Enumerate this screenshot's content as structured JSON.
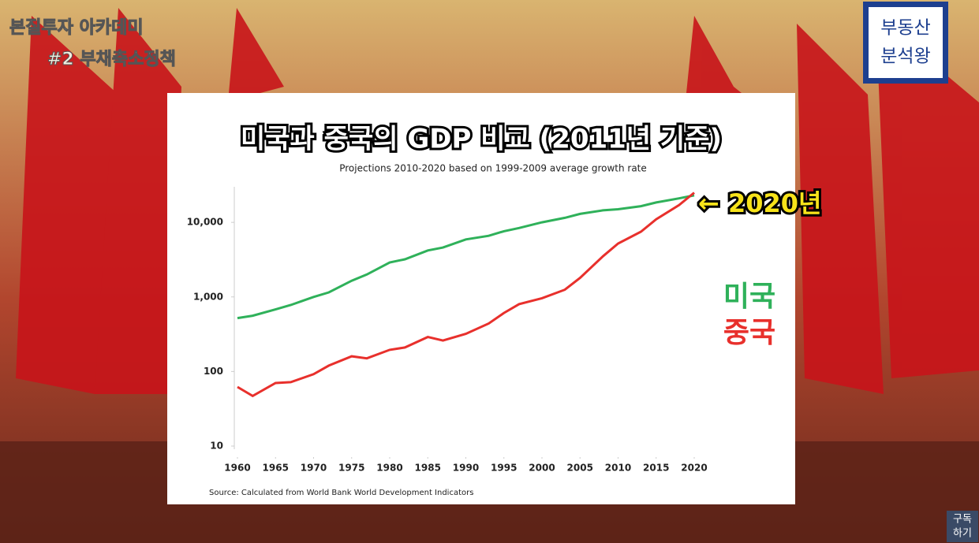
{
  "chart_data": {
    "type": "line",
    "title": "미국과 중국의 GDP 비교 (2011년 기준)",
    "subtitle": "Projections 2010-2020 based on  1999-2009 average growth rate",
    "source": "Source: Calculated from World Bank World Development Indicators",
    "annotation": "← 2020년",
    "x": [
      1960,
      1962,
      1965,
      1967,
      1970,
      1972,
      1975,
      1977,
      1980,
      1982,
      1985,
      1987,
      1990,
      1993,
      1995,
      1997,
      2000,
      2003,
      2005,
      2008,
      2010,
      2013,
      2015,
      2018,
      2020
    ],
    "series": [
      {
        "name": "미국",
        "color": "#2fb15a",
        "values": [
          520,
          560,
          680,
          780,
          1000,
          1150,
          1650,
          2000,
          2900,
          3200,
          4200,
          4600,
          5900,
          6600,
          7600,
          8400,
          10000,
          11500,
          13000,
          14500,
          15000,
          16500,
          18500,
          21000,
          23000
        ]
      },
      {
        "name": "중국",
        "color": "#e8302c",
        "values": [
          62,
          47,
          70,
          72,
          92,
          120,
          160,
          150,
          195,
          210,
          290,
          260,
          320,
          440,
          610,
          800,
          960,
          1250,
          1800,
          3500,
          5200,
          7500,
          11000,
          17000,
          25000
        ]
      }
    ],
    "xlim": [
      1960,
      2020
    ],
    "xticks": [
      1960,
      1965,
      1970,
      1975,
      1980,
      1985,
      1990,
      1995,
      2000,
      2005,
      2010,
      2015,
      2020
    ],
    "ylim": [
      10,
      30000
    ],
    "yticks": [
      10,
      100,
      {
        "value": 1000,
        "label": "1,000"
      },
      {
        "value": 10000,
        "label": "10,000"
      }
    ],
    "log_y": true
  },
  "overlay": {
    "channel": "본질투자 아카데미",
    "episode": "#2 부채축소정책",
    "badge": [
      "부동산",
      "분석왕"
    ],
    "subscribe": [
      "구독",
      "하기"
    ]
  }
}
